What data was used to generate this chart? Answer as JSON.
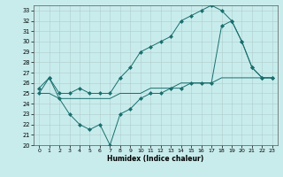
{
  "xlabel": "Humidex (Indice chaleur)",
  "bg_color": "#c8ecec",
  "grid_color": "#b0cccc",
  "line_color": "#1a6e6e",
  "xlim": [
    -0.5,
    23.5
  ],
  "ylim": [
    20,
    33.5
  ],
  "yticks": [
    20,
    21,
    22,
    23,
    24,
    25,
    26,
    27,
    28,
    29,
    30,
    31,
    32,
    33
  ],
  "xticks": [
    0,
    1,
    2,
    3,
    4,
    5,
    6,
    7,
    8,
    9,
    10,
    11,
    12,
    13,
    14,
    15,
    16,
    17,
    18,
    19,
    20,
    21,
    22,
    23
  ],
  "series": [
    {
      "x": [
        0,
        1,
        2,
        3,
        4,
        5,
        6,
        7,
        8,
        9,
        10,
        11,
        12,
        13,
        14,
        15,
        16,
        17,
        18,
        19,
        20,
        21,
        22,
        23
      ],
      "y": [
        25.5,
        26.5,
        25.0,
        25.0,
        25.5,
        25.0,
        25.0,
        25.0,
        26.5,
        27.5,
        29.0,
        29.5,
        30.0,
        30.5,
        32.0,
        32.5,
        33.0,
        33.5,
        33.0,
        32.0,
        30.0,
        27.5,
        26.5,
        26.5
      ],
      "marker": "D",
      "markersize": 2.0
    },
    {
      "x": [
        0,
        1,
        2,
        3,
        4,
        5,
        6,
        7,
        8,
        9,
        10,
        11,
        12,
        13,
        14,
        15,
        16,
        17,
        18,
        19,
        20,
        21,
        22,
        23
      ],
      "y": [
        25.0,
        25.0,
        24.5,
        24.5,
        24.5,
        24.5,
        24.5,
        24.5,
        25.0,
        25.0,
        25.0,
        25.5,
        25.5,
        25.5,
        26.0,
        26.0,
        26.0,
        26.0,
        26.5,
        26.5,
        26.5,
        26.5,
        26.5,
        26.5
      ],
      "marker": null,
      "markersize": 0
    },
    {
      "x": [
        0,
        1,
        2,
        3,
        4,
        5,
        6,
        7,
        8,
        9,
        10,
        11,
        12,
        13,
        14,
        15,
        16,
        17,
        18,
        19,
        20,
        21,
        22,
        23
      ],
      "y": [
        25.0,
        26.5,
        24.5,
        23.0,
        22.0,
        21.5,
        22.0,
        20.0,
        23.0,
        23.5,
        24.5,
        25.0,
        25.0,
        25.5,
        25.5,
        26.0,
        26.0,
        26.0,
        31.5,
        32.0,
        30.0,
        27.5,
        26.5,
        26.5
      ],
      "marker": "D",
      "markersize": 2.0
    }
  ]
}
